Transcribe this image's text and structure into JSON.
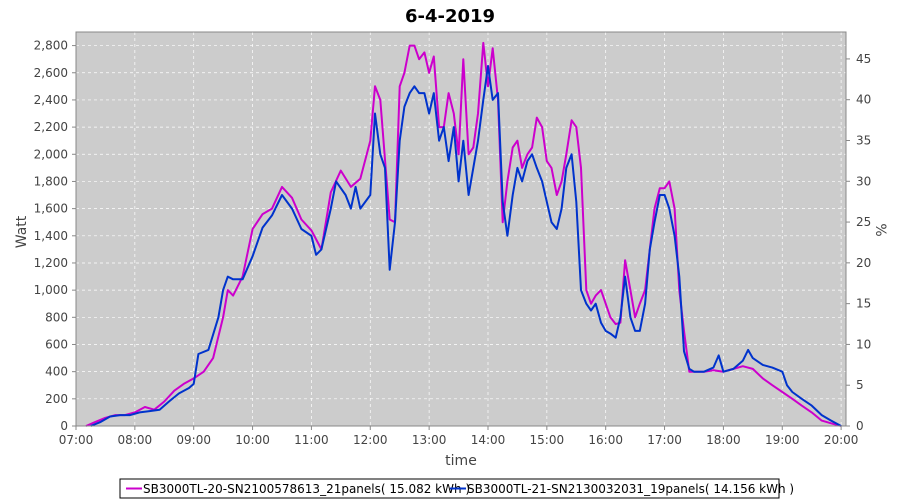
{
  "chart_data": {
    "type": "line",
    "title": "6-4-2019",
    "xlabel": "time",
    "ylabel": "Watt",
    "y2label": "%",
    "xlim": [
      7.0,
      20.083
    ],
    "ylim": [
      0,
      2900
    ],
    "y2lim": [
      0,
      48.3
    ],
    "x_ticks": [
      "07:00",
      "08:00",
      "09:00",
      "10:00",
      "11:00",
      "12:00",
      "13:00",
      "14:00",
      "15:00",
      "16:00",
      "17:00",
      "18:00",
      "19:00",
      "20:00"
    ],
    "y_ticks": [
      "0",
      "200",
      "400",
      "600",
      "800",
      "1,000",
      "1,200",
      "1,400",
      "1,600",
      "1,800",
      "2,000",
      "2,200",
      "2,400",
      "2,600",
      "2,800"
    ],
    "y2_ticks": [
      "0",
      "5",
      "10",
      "15",
      "20",
      "25",
      "30",
      "35",
      "40",
      "45"
    ],
    "grid": true,
    "legend_position": "bottom",
    "series": [
      {
        "name": "SB3000TL-20-SN2100578613_21panels( 15.082 kWh )",
        "color": "#cc00cc",
        "points": [
          [
            7.17,
            0
          ],
          [
            7.33,
            30
          ],
          [
            7.5,
            60
          ],
          [
            7.67,
            80
          ],
          [
            7.83,
            80
          ],
          [
            8.0,
            100
          ],
          [
            8.17,
            140
          ],
          [
            8.33,
            120
          ],
          [
            8.5,
            180
          ],
          [
            8.67,
            260
          ],
          [
            8.83,
            310
          ],
          [
            9.0,
            350
          ],
          [
            9.17,
            400
          ],
          [
            9.33,
            500
          ],
          [
            9.5,
            800
          ],
          [
            9.58,
            1000
          ],
          [
            9.67,
            960
          ],
          [
            9.83,
            1100
          ],
          [
            10.0,
            1450
          ],
          [
            10.17,
            1560
          ],
          [
            10.33,
            1600
          ],
          [
            10.5,
            1760
          ],
          [
            10.67,
            1680
          ],
          [
            10.83,
            1520
          ],
          [
            11.0,
            1440
          ],
          [
            11.17,
            1300
          ],
          [
            11.33,
            1720
          ],
          [
            11.5,
            1880
          ],
          [
            11.67,
            1760
          ],
          [
            11.83,
            1820
          ],
          [
            12.0,
            2100
          ],
          [
            12.08,
            2500
          ],
          [
            12.17,
            2400
          ],
          [
            12.33,
            1520
          ],
          [
            12.42,
            1500
          ],
          [
            12.5,
            2500
          ],
          [
            12.58,
            2600
          ],
          [
            12.67,
            2800
          ],
          [
            12.75,
            2800
          ],
          [
            12.83,
            2700
          ],
          [
            12.92,
            2750
          ],
          [
            13.0,
            2600
          ],
          [
            13.08,
            2720
          ],
          [
            13.17,
            2200
          ],
          [
            13.25,
            2200
          ],
          [
            13.33,
            2450
          ],
          [
            13.42,
            2300
          ],
          [
            13.5,
            2000
          ],
          [
            13.58,
            2700
          ],
          [
            13.67,
            2000
          ],
          [
            13.75,
            2050
          ],
          [
            13.83,
            2300
          ],
          [
            13.92,
            2820
          ],
          [
            14.0,
            2500
          ],
          [
            14.08,
            2780
          ],
          [
            14.17,
            2400
          ],
          [
            14.25,
            1500
          ],
          [
            14.33,
            1800
          ],
          [
            14.42,
            2050
          ],
          [
            14.5,
            2100
          ],
          [
            14.58,
            1900
          ],
          [
            14.67,
            2000
          ],
          [
            14.75,
            2050
          ],
          [
            14.83,
            2270
          ],
          [
            14.92,
            2200
          ],
          [
            15.0,
            1950
          ],
          [
            15.08,
            1900
          ],
          [
            15.17,
            1700
          ],
          [
            15.25,
            1800
          ],
          [
            15.33,
            2000
          ],
          [
            15.42,
            2250
          ],
          [
            15.5,
            2200
          ],
          [
            15.58,
            1900
          ],
          [
            15.67,
            1000
          ],
          [
            15.75,
            900
          ],
          [
            15.83,
            960
          ],
          [
            15.92,
            1000
          ],
          [
            16.0,
            900
          ],
          [
            16.08,
            800
          ],
          [
            16.17,
            750
          ],
          [
            16.25,
            760
          ],
          [
            16.33,
            1220
          ],
          [
            16.42,
            1000
          ],
          [
            16.5,
            800
          ],
          [
            16.58,
            900
          ],
          [
            16.67,
            1000
          ],
          [
            16.75,
            1300
          ],
          [
            16.83,
            1600
          ],
          [
            16.92,
            1750
          ],
          [
            17.0,
            1750
          ],
          [
            17.08,
            1800
          ],
          [
            17.17,
            1600
          ],
          [
            17.25,
            1000
          ],
          [
            17.33,
            700
          ],
          [
            17.42,
            400
          ],
          [
            17.5,
            400
          ],
          [
            17.67,
            400
          ],
          [
            17.83,
            410
          ],
          [
            18.0,
            400
          ],
          [
            18.17,
            420
          ],
          [
            18.33,
            440
          ],
          [
            18.5,
            420
          ],
          [
            18.67,
            350
          ],
          [
            18.83,
            300
          ],
          [
            19.0,
            250
          ],
          [
            19.17,
            200
          ],
          [
            19.33,
            150
          ],
          [
            19.5,
            100
          ],
          [
            19.67,
            40
          ],
          [
            19.83,
            20
          ],
          [
            20.0,
            0
          ]
        ]
      },
      {
        "name": "SB3000TL-21-SN2130032031_19panels( 14.156 kWh )",
        "color": "#0033cc",
        "points": [
          [
            7.25,
            0
          ],
          [
            7.42,
            30
          ],
          [
            7.58,
            70
          ],
          [
            7.75,
            80
          ],
          [
            7.92,
            80
          ],
          [
            8.08,
            100
          ],
          [
            8.25,
            110
          ],
          [
            8.42,
            120
          ],
          [
            8.58,
            180
          ],
          [
            8.75,
            240
          ],
          [
            8.92,
            280
          ],
          [
            9.0,
            310
          ],
          [
            9.08,
            530
          ],
          [
            9.25,
            560
          ],
          [
            9.42,
            800
          ],
          [
            9.5,
            1000
          ],
          [
            9.58,
            1100
          ],
          [
            9.67,
            1080
          ],
          [
            9.83,
            1080
          ],
          [
            10.0,
            1250
          ],
          [
            10.17,
            1460
          ],
          [
            10.33,
            1550
          ],
          [
            10.5,
            1700
          ],
          [
            10.67,
            1600
          ],
          [
            10.83,
            1450
          ],
          [
            11.0,
            1400
          ],
          [
            11.08,
            1260
          ],
          [
            11.17,
            1300
          ],
          [
            11.33,
            1600
          ],
          [
            11.42,
            1800
          ],
          [
            11.58,
            1700
          ],
          [
            11.67,
            1600
          ],
          [
            11.75,
            1760
          ],
          [
            11.83,
            1600
          ],
          [
            12.0,
            1700
          ],
          [
            12.08,
            2300
          ],
          [
            12.17,
            2000
          ],
          [
            12.25,
            1900
          ],
          [
            12.33,
            1150
          ],
          [
            12.42,
            1500
          ],
          [
            12.5,
            2100
          ],
          [
            12.58,
            2350
          ],
          [
            12.67,
            2450
          ],
          [
            12.75,
            2500
          ],
          [
            12.83,
            2450
          ],
          [
            12.92,
            2450
          ],
          [
            13.0,
            2300
          ],
          [
            13.08,
            2450
          ],
          [
            13.17,
            2100
          ],
          [
            13.25,
            2200
          ],
          [
            13.33,
            1950
          ],
          [
            13.42,
            2200
          ],
          [
            13.5,
            1800
          ],
          [
            13.58,
            2100
          ],
          [
            13.67,
            1700
          ],
          [
            13.75,
            1900
          ],
          [
            13.83,
            2100
          ],
          [
            13.92,
            2400
          ],
          [
            14.0,
            2650
          ],
          [
            14.08,
            2400
          ],
          [
            14.17,
            2450
          ],
          [
            14.25,
            1650
          ],
          [
            14.33,
            1400
          ],
          [
            14.42,
            1700
          ],
          [
            14.5,
            1900
          ],
          [
            14.58,
            1800
          ],
          [
            14.67,
            1950
          ],
          [
            14.75,
            2000
          ],
          [
            14.83,
            1900
          ],
          [
            14.92,
            1800
          ],
          [
            15.0,
            1650
          ],
          [
            15.08,
            1500
          ],
          [
            15.17,
            1450
          ],
          [
            15.25,
            1600
          ],
          [
            15.33,
            1900
          ],
          [
            15.42,
            2000
          ],
          [
            15.5,
            1650
          ],
          [
            15.58,
            1000
          ],
          [
            15.67,
            900
          ],
          [
            15.75,
            850
          ],
          [
            15.83,
            900
          ],
          [
            15.92,
            760
          ],
          [
            16.0,
            700
          ],
          [
            16.08,
            680
          ],
          [
            16.17,
            650
          ],
          [
            16.25,
            800
          ],
          [
            16.33,
            1100
          ],
          [
            16.42,
            800
          ],
          [
            16.5,
            700
          ],
          [
            16.58,
            700
          ],
          [
            16.67,
            900
          ],
          [
            16.75,
            1300
          ],
          [
            16.83,
            1500
          ],
          [
            16.92,
            1700
          ],
          [
            17.0,
            1700
          ],
          [
            17.08,
            1600
          ],
          [
            17.17,
            1400
          ],
          [
            17.25,
            1100
          ],
          [
            17.33,
            550
          ],
          [
            17.42,
            420
          ],
          [
            17.5,
            400
          ],
          [
            17.67,
            400
          ],
          [
            17.83,
            430
          ],
          [
            17.92,
            520
          ],
          [
            18.0,
            400
          ],
          [
            18.17,
            420
          ],
          [
            18.33,
            480
          ],
          [
            18.42,
            560
          ],
          [
            18.5,
            500
          ],
          [
            18.67,
            450
          ],
          [
            18.83,
            430
          ],
          [
            19.0,
            400
          ],
          [
            19.08,
            300
          ],
          [
            19.17,
            250
          ],
          [
            19.33,
            200
          ],
          [
            19.5,
            150
          ],
          [
            19.67,
            80
          ],
          [
            19.83,
            40
          ],
          [
            20.0,
            0
          ]
        ]
      }
    ]
  }
}
